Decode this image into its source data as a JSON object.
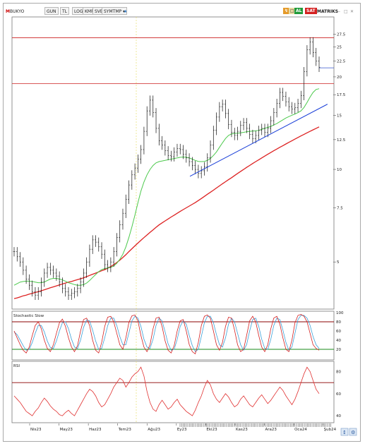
{
  "toolbar": {
    "symbol": "BUKYO",
    "buttons": [
      "GUN",
      "TL",
      "LOG",
      "KMR",
      "SVB",
      "SYMTMP"
    ],
    "right_badges": [
      {
        "label": "AL",
        "color": "#1f9a3a"
      },
      {
        "label": "SAT",
        "color": "#d42020"
      }
    ],
    "matrix_label": "MATRIKS"
  },
  "colors": {
    "price_bars": "#111111",
    "ma_fast": "#4cc94c",
    "ma_slow": "#dd2222",
    "trendline": "#1a3fd8",
    "level": "#cc2222",
    "stoch_k": "#d42020",
    "stoch_d": "#3aa0d8",
    "rsi": "#e03030",
    "band": "#8b0000",
    "stoch_low": "#1a8a1a"
  },
  "chart_data": [
    {
      "type": "line",
      "panel": "price",
      "title": "",
      "y_axis": {
        "scale": "log",
        "ticks": [
          27.5,
          25,
          22.5,
          20,
          17.5,
          15,
          12.5,
          10,
          7.5,
          5
        ],
        "ylim": [
          3.55,
          31
        ]
      },
      "x_axis": {
        "tick_labels": [
          "Nis23",
          "May23",
          "Haz23",
          "Tem23",
          "Ağu23",
          "Ey23",
          "Eki23",
          "Kas23",
          "Ara23",
          "Oca24",
          "Şub24"
        ]
      },
      "horizontal_levels": [
        19.0,
        26.8,
        21.4
      ],
      "trendline": [
        [
          210,
          9.5
        ],
        [
          375,
          16.3
        ]
      ],
      "series": [
        {
          "role": "price",
          "values": [
            5.4,
            5.2,
            5.0,
            4.7,
            4.4,
            4.2,
            4.0,
            3.9,
            4.0,
            4.3,
            4.6,
            4.8,
            4.7,
            4.6,
            4.5,
            4.3,
            4.1,
            4.0,
            3.9,
            3.95,
            4.0,
            4.1,
            4.3,
            4.6,
            5.0,
            5.5,
            5.9,
            5.8,
            5.6,
            5.3,
            4.9,
            4.8,
            5.0,
            5.4,
            6.0,
            6.6,
            7.2,
            8.0,
            8.9,
            9.6,
            10.1,
            10.8,
            11.6,
            13.3,
            15.5,
            16.8,
            15.3,
            13.6,
            12.4,
            12.0,
            11.5,
            11.1,
            11.0,
            11.4,
            11.7,
            11.6,
            11.2,
            10.9,
            10.6,
            10.3,
            10.0,
            9.7,
            9.9,
            10.2,
            10.9,
            12.0,
            13.4,
            14.8,
            16.0,
            16.3,
            15.2,
            14.0,
            13.2,
            12.9,
            13.3,
            13.9,
            14.2,
            13.6,
            13.0,
            12.6,
            12.9,
            13.4,
            13.6,
            13.2,
            13.6,
            14.4,
            15.3,
            16.4,
            17.8,
            17.3,
            16.6,
            16.0,
            15.7,
            15.9,
            16.4,
            17.4,
            20.8,
            24.5,
            26.0,
            24.0,
            22.5,
            21.5
          ]
        },
        {
          "role": "ma_fast",
          "values": [
            4.2,
            4.25,
            4.3,
            4.32,
            4.33,
            4.33,
            4.32,
            4.3,
            4.28,
            4.28,
            4.3,
            4.35,
            4.4,
            4.42,
            4.42,
            4.4,
            4.37,
            4.33,
            4.28,
            4.25,
            4.22,
            4.2,
            4.2,
            4.22,
            4.27,
            4.35,
            4.45,
            4.55,
            4.65,
            4.72,
            4.76,
            4.78,
            4.8,
            4.85,
            4.95,
            5.1,
            5.3,
            5.6,
            6.0,
            6.5,
            7.1,
            7.8,
            8.5,
            9.1,
            9.6,
            10.0,
            10.3,
            10.5,
            10.6,
            10.65,
            10.7,
            10.75,
            10.8,
            10.85,
            10.9,
            10.95,
            10.97,
            10.95,
            10.9,
            10.8,
            10.7,
            10.62,
            10.6,
            10.62,
            10.7,
            10.85,
            11.1,
            11.4,
            11.8,
            12.2,
            12.6,
            12.9,
            13.05,
            13.1,
            13.12,
            13.15,
            13.2,
            13.25,
            13.3,
            13.32,
            13.35,
            13.4,
            13.5,
            13.6,
            13.7,
            13.8,
            13.95,
            14.1,
            14.3,
            14.5,
            14.7,
            14.85,
            15.0,
            15.15,
            15.3,
            15.5,
            15.9,
            16.5,
            17.2,
            17.8,
            18.2,
            18.3
          ]
        },
        {
          "role": "ma_slow",
          "values": [
            3.8,
            3.82,
            3.85,
            3.88,
            3.9,
            3.93,
            3.95,
            3.98,
            4.0,
            4.03,
            4.06,
            4.09,
            4.12,
            4.15,
            4.18,
            4.21,
            4.24,
            4.27,
            4.3,
            4.32,
            4.35,
            4.38,
            4.41,
            4.44,
            4.48,
            4.52,
            4.56,
            4.6,
            4.64,
            4.68,
            4.72,
            4.77,
            4.83,
            4.9,
            4.98,
            5.07,
            5.17,
            5.28,
            5.4,
            5.52,
            5.64,
            5.76,
            5.88,
            6.0,
            6.12,
            6.24,
            6.36,
            6.48,
            6.6,
            6.7,
            6.8,
            6.9,
            7.0,
            7.1,
            7.2,
            7.3,
            7.4,
            7.5,
            7.6,
            7.7,
            7.8,
            7.92,
            8.04,
            8.17,
            8.3,
            8.43,
            8.56,
            8.7,
            8.84,
            8.98,
            9.12,
            9.26,
            9.4,
            9.55,
            9.7,
            9.85,
            10.0,
            10.15,
            10.3,
            10.45,
            10.6,
            10.75,
            10.9,
            11.05,
            11.2,
            11.35,
            11.5,
            11.65,
            11.8,
            11.95,
            12.1,
            12.25,
            12.4,
            12.55,
            12.7,
            12.85,
            13.0,
            13.15,
            13.3,
            13.45,
            13.6,
            13.75
          ]
        }
      ]
    },
    {
      "type": "line",
      "panel": "stochastic",
      "title": "Stochastic Slow",
      "y_axis": {
        "ticks": [
          100,
          80,
          60,
          40,
          20
        ],
        "ylim": [
          0,
          100
        ]
      },
      "bands": [
        80,
        20
      ],
      "series": [
        {
          "role": "k",
          "values": [
            60,
            45,
            30,
            18,
            12,
            25,
            50,
            72,
            80,
            65,
            40,
            22,
            15,
            30,
            55,
            78,
            86,
            70,
            45,
            25,
            15,
            28,
            60,
            85,
            88,
            72,
            40,
            18,
            12,
            35,
            70,
            90,
            92,
            80,
            55,
            30,
            20,
            45,
            78,
            93,
            95,
            82,
            50,
            25,
            15,
            30,
            65,
            88,
            90,
            70,
            38,
            18,
            12,
            28,
            60,
            82,
            85,
            60,
            30,
            15,
            10,
            35,
            72,
            92,
            95,
            88,
            60,
            30,
            18,
            35,
            70,
            90,
            88,
            62,
            30,
            15,
            20,
            50,
            82,
            92,
            80,
            50,
            25,
            15,
            30,
            65,
            88,
            92,
            75,
            45,
            20,
            15,
            40,
            78,
            94,
            96,
            92,
            80,
            55,
            30,
            22,
            18
          ]
        },
        {
          "role": "d",
          "values": [
            58,
            52,
            40,
            28,
            18,
            20,
            35,
            55,
            72,
            72,
            58,
            38,
            24,
            22,
            38,
            60,
            78,
            80,
            65,
            42,
            25,
            22,
            40,
            68,
            84,
            82,
            62,
            38,
            20,
            22,
            45,
            72,
            88,
            88,
            72,
            48,
            30,
            30,
            55,
            82,
            92,
            88,
            70,
            42,
            25,
            22,
            42,
            72,
            88,
            82,
            58,
            32,
            18,
            20,
            42,
            70,
            82,
            75,
            50,
            28,
            15,
            20,
            48,
            78,
            92,
            92,
            78,
            52,
            30,
            25,
            45,
            75,
            88,
            80,
            55,
            30,
            18,
            30,
            60,
            85,
            88,
            70,
            42,
            22,
            20,
            42,
            72,
            88,
            85,
            62,
            35,
            18,
            25,
            55,
            85,
            94,
            94,
            88,
            72,
            48,
            30,
            22
          ]
        }
      ]
    },
    {
      "type": "line",
      "panel": "rsi",
      "title": "RSI",
      "y_axis": {
        "ticks": [
          80,
          60,
          40
        ],
        "ylim": [
          35,
          88
        ]
      },
      "bands": [
        70
      ],
      "series": [
        {
          "role": "rsi",
          "values": [
            58,
            55,
            52,
            48,
            44,
            42,
            40,
            44,
            47,
            52,
            56,
            53,
            49,
            46,
            44,
            41,
            40,
            43,
            45,
            42,
            40,
            45,
            50,
            55,
            60,
            64,
            62,
            58,
            52,
            48,
            50,
            55,
            60,
            66,
            70,
            74,
            72,
            66,
            70,
            75,
            78,
            80,
            84,
            76,
            62,
            52,
            46,
            44,
            50,
            54,
            50,
            46,
            48,
            52,
            55,
            50,
            47,
            44,
            42,
            40,
            45,
            52,
            58,
            66,
            72,
            68,
            60,
            55,
            52,
            56,
            60,
            57,
            52,
            48,
            50,
            55,
            58,
            54,
            50,
            48,
            52,
            56,
            59,
            55,
            51,
            54,
            58,
            62,
            66,
            63,
            58,
            54,
            50,
            55,
            62,
            70,
            78,
            84,
            80,
            72,
            64,
            60
          ]
        }
      ]
    }
  ]
}
